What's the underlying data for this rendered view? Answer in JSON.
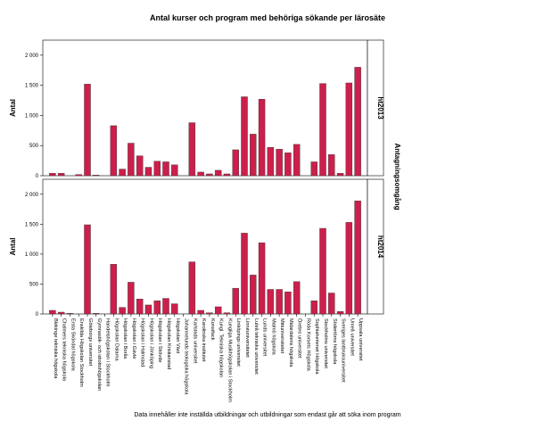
{
  "chart_data": {
    "type": "bar",
    "title": "Antal kurser och program med behöriga sökande per lärosäte",
    "ylabel": "Antal",
    "facet_label": "Antagningsomgång",
    "note": "Data innehåller inte inställda utbildningar och utbildningar som endast går att söka inom program",
    "color": "#cc1f4b",
    "ylim": [
      0,
      2250
    ],
    "yticks": [
      0,
      500,
      {
        "value": 1000,
        "label": "1 000"
      },
      {
        "value": 1500,
        "label": "1 500"
      },
      {
        "value": 2000,
        "label": "2 000"
      }
    ],
    "categories": [
      "Blekinge tekniska högskola",
      "Chalmers tekniska högskola",
      "Ersta Sköndal högskola",
      "Enskilda Högskolan Stockholm",
      "Göteborgs universitet",
      "Gymnastik- och idrottshögskolan",
      "Handelshögskolan i Stockholm",
      "Högskolan Dalarna",
      "Högskolan i Borås",
      "Högskolan i Gävle",
      "Högskolan i Halmstad",
      "Högskolan i Jönköping",
      "Högskolan i Skövde",
      "Högskolan Kristianstad",
      "Högskolan Väst",
      "Johannelunds teologiska högskola",
      "Karlstads universitet",
      "Karolinska institutet",
      "Konstfack",
      "Kungl. Tekniska högskolan",
      "Kungliga Musikhögskolan i Stockholm",
      "Linköpings universitet",
      "Linnéuniversitetet",
      "Luleå tekniska universitet",
      "Lunds universitet",
      "Malmö högskola",
      "Mittuniversitetet",
      "Mälardalens högskola",
      "Örebro universitet",
      "Röda Korsets Högskola",
      "Sophiahemmet Högskola",
      "Stockholms universitet",
      "Södertörns högskola",
      "Sveriges lantbruksuniversitet",
      "Umeå universitet",
      "Uppsala universitet"
    ],
    "facets": [
      {
        "label": "ht2013",
        "values": [
          40,
          40,
          0,
          20,
          1520,
          10,
          0,
          830,
          110,
          540,
          330,
          140,
          240,
          230,
          180,
          0,
          880,
          60,
          30,
          90,
          30,
          430,
          1310,
          690,
          1270,
          470,
          440,
          380,
          520,
          0,
          230,
          1530,
          350,
          40,
          1540,
          1800
        ]
      },
      {
        "label": "ht2014",
        "values": [
          60,
          30,
          10,
          0,
          1490,
          10,
          0,
          830,
          110,
          530,
          250,
          150,
          220,
          260,
          170,
          0,
          870,
          60,
          20,
          120,
          20,
          430,
          1350,
          650,
          1190,
          410,
          410,
          370,
          540,
          0,
          220,
          1430,
          350,
          40,
          1530,
          1890
        ]
      }
    ]
  }
}
